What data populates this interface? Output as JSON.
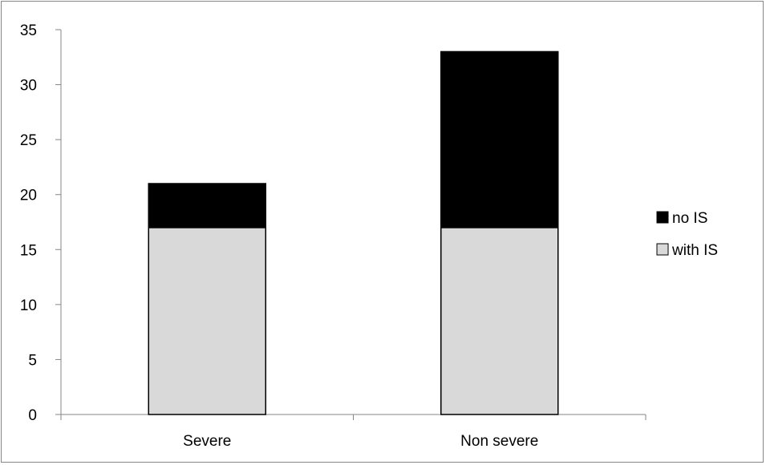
{
  "chart_data": {
    "type": "bar",
    "stacked": true,
    "categories": [
      "Severe",
      "Non severe"
    ],
    "series": [
      {
        "name": "with IS",
        "values": [
          17,
          17
        ],
        "color": "#d9d9d9"
      },
      {
        "name": "no IS",
        "values": [
          4,
          16
        ],
        "color": "#000000"
      }
    ],
    "title": "",
    "xlabel": "",
    "ylabel": "",
    "ylim": [
      0,
      35
    ],
    "yticks": [
      0,
      5,
      10,
      15,
      20,
      25,
      30,
      35
    ],
    "grid": false,
    "legend_position": "right",
    "legend_order": [
      "no IS",
      "with IS"
    ],
    "axis_color": "#868686"
  }
}
